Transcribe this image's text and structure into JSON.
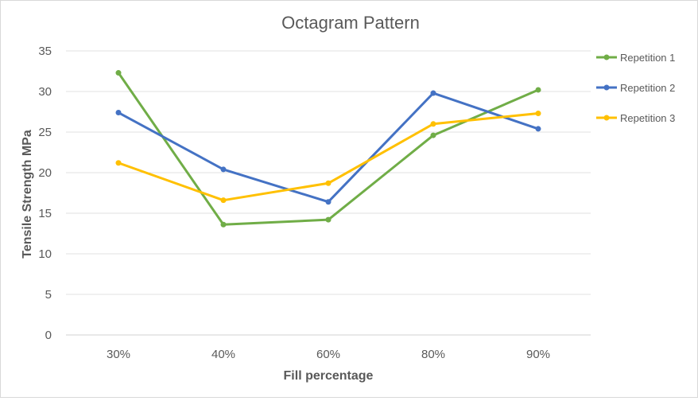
{
  "chart_data": {
    "type": "line",
    "title": "Octagram Pattern",
    "xlabel": "Fill percentage",
    "ylabel": "Tensile Strength MPa",
    "categories": [
      "30%",
      "40%",
      "60%",
      "80%",
      "90%"
    ],
    "ylim": [
      0,
      35
    ],
    "yticks": [
      0,
      5,
      10,
      15,
      20,
      25,
      30,
      35
    ],
    "grid": true,
    "legend_position": "right",
    "series": [
      {
        "name": "Repetition 1",
        "color": "#70ad47",
        "values": [
          32.3,
          13.6,
          14.2,
          24.6,
          30.2
        ]
      },
      {
        "name": "Repetition 2",
        "color": "#4472c4",
        "values": [
          27.4,
          20.4,
          16.4,
          29.8,
          25.4
        ]
      },
      {
        "name": "Repetition 3",
        "color": "#ffc000",
        "values": [
          21.2,
          16.6,
          18.7,
          26.0,
          27.3
        ]
      }
    ]
  }
}
